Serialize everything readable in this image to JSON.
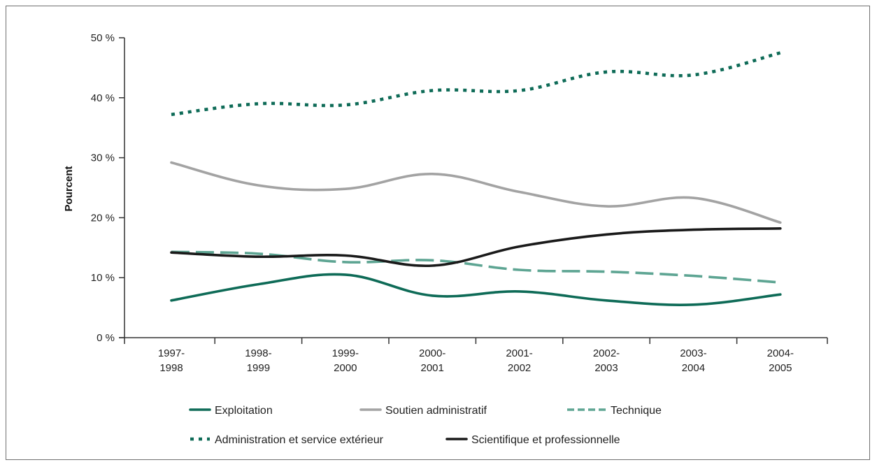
{
  "chart_data": {
    "type": "line",
    "title": "",
    "xlabel": "",
    "ylabel": "Pourcent",
    "ylim": [
      0,
      50
    ],
    "y_ticks": [
      "0 %",
      "10 %",
      "20 %",
      "30 %",
      "40 %",
      "50 %"
    ],
    "categories": [
      [
        "1997-",
        "1998"
      ],
      [
        "1998-",
        "1999"
      ],
      [
        "1999-",
        "2000"
      ],
      [
        "2000-",
        "2001"
      ],
      [
        "2001-",
        "2002"
      ],
      [
        "2002-",
        "2003"
      ],
      [
        "2003-",
        "2004"
      ],
      [
        "2004-",
        "2005"
      ]
    ],
    "series": [
      {
        "name": "Exploitation",
        "color": "#0e6b57",
        "style": "solid",
        "values": [
          6.2,
          8.9,
          10.5,
          7.0,
          7.7,
          6.2,
          5.5,
          7.2
        ]
      },
      {
        "name": "Soutien administratif",
        "color": "#a3a3a3",
        "style": "solid",
        "values": [
          29.2,
          25.4,
          24.8,
          27.3,
          24.3,
          21.9,
          23.3,
          19.2
        ]
      },
      {
        "name": "Technique",
        "color": "#5ea593",
        "style": "dashed",
        "values": [
          14.3,
          14.0,
          12.6,
          12.9,
          11.3,
          11.0,
          10.3,
          9.2
        ]
      },
      {
        "name": "Administration et service extérieur",
        "color": "#0e6b57",
        "style": "dotted",
        "values": [
          37.2,
          39.0,
          38.8,
          41.2,
          41.2,
          44.3,
          43.8,
          47.5
        ]
      },
      {
        "name": "Scientifique et professionnelle",
        "color": "#1a1a1a",
        "style": "solid",
        "values": [
          14.2,
          13.5,
          13.7,
          12.0,
          15.2,
          17.2,
          18.0,
          18.2
        ]
      }
    ],
    "grid": false,
    "legend_position": "bottom"
  }
}
